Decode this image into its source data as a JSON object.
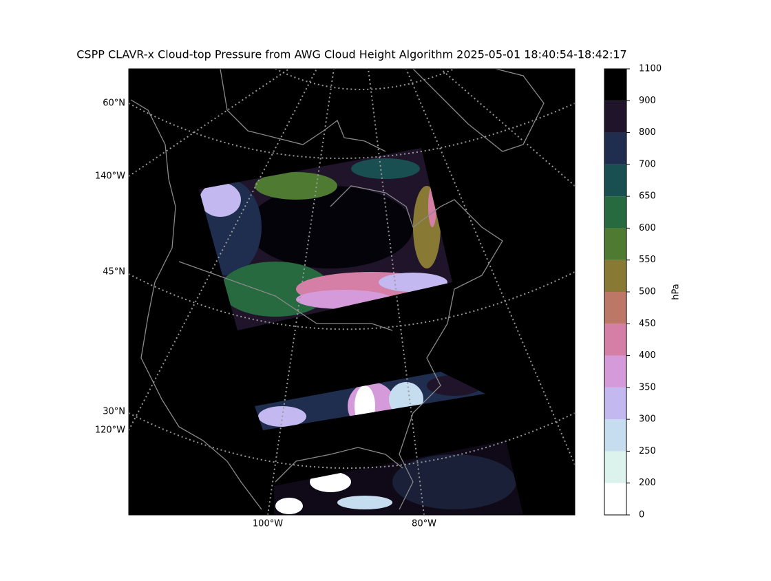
{
  "title": "CSPP CLAVR-x Cloud-top Pressure from AWG Cloud Height Algorithm 2025-05-01 18:40:54-18:42:17",
  "map": {
    "left_labels": [
      "60°N",
      "140°W",
      "45°N",
      "30°N",
      "120°W"
    ],
    "bottom_labels": [
      "100°W",
      "80°W"
    ]
  },
  "colorbar": {
    "label": "hPa",
    "ticks": [
      0,
      200,
      250,
      300,
      350,
      400,
      450,
      500,
      550,
      600,
      650,
      700,
      800,
      900,
      1100
    ],
    "colors": [
      "#ffffff",
      "#dcf2ec",
      "#c6dcef",
      "#c3b8ef",
      "#d49ad9",
      "#d57fa7",
      "#bd7766",
      "#887935",
      "#4e7a32",
      "#276a40",
      "#1a4f52",
      "#1f2e4f",
      "#1f1429",
      "#000000"
    ]
  }
}
